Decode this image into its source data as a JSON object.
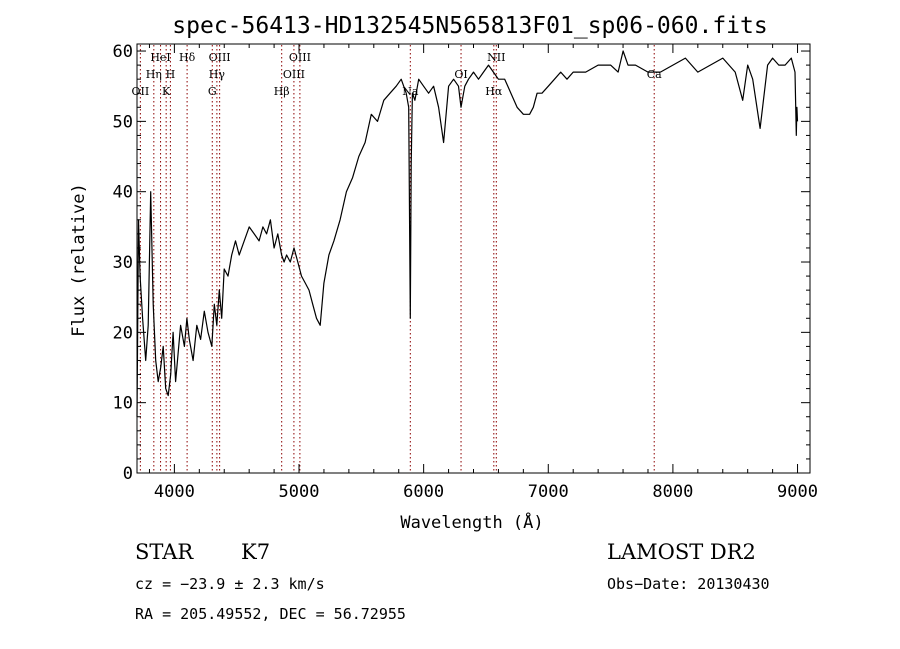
{
  "chart_data": {
    "type": "line",
    "title": "spec-56413-HD132545N565813F01_sp06-060.fits",
    "xlabel": "Wavelength (Å)",
    "ylabel": "Flux (relative)",
    "xlim": [
      3700,
      9100
    ],
    "ylim": [
      0,
      61
    ],
    "grid": false,
    "x_ticks": [
      4000,
      5000,
      6000,
      7000,
      8000,
      9000
    ],
    "x_tick_labels": [
      "4000",
      "5000",
      "6000",
      "7000",
      "8000",
      "9000"
    ],
    "y_ticks": [
      0,
      10,
      20,
      30,
      40,
      50,
      60
    ],
    "y_tick_labels": [
      "0",
      "10",
      "20",
      "30",
      "40",
      "50",
      "60"
    ],
    "series": [
      {
        "color": "#000000",
        "x": [
          3700,
          3712,
          3725,
          3745,
          3770,
          3790,
          3810,
          3830,
          3850,
          3870,
          3890,
          3910,
          3930,
          3950,
          3970,
          3990,
          4010,
          4030,
          4050,
          4080,
          4100,
          4120,
          4150,
          4180,
          4210,
          4240,
          4270,
          4300,
          4320,
          4340,
          4360,
          4380,
          4400,
          4430,
          4460,
          4490,
          4520,
          4560,
          4600,
          4640,
          4680,
          4710,
          4740,
          4770,
          4800,
          4830,
          4860,
          4880,
          4900,
          4930,
          4960,
          4990,
          5020,
          5050,
          5080,
          5110,
          5140,
          5170,
          5200,
          5240,
          5280,
          5330,
          5380,
          5430,
          5480,
          5530,
          5580,
          5630,
          5680,
          5730,
          5780,
          5820,
          5860,
          5880,
          5893,
          5900,
          5910,
          5930,
          5960,
          6000,
          6040,
          6080,
          6120,
          6160,
          6200,
          6240,
          6280,
          6300,
          6330,
          6360,
          6400,
          6440,
          6480,
          6520,
          6560,
          6600,
          6650,
          6700,
          6750,
          6800,
          6850,
          6880,
          6910,
          6950,
          7000,
          7050,
          7100,
          7150,
          7200,
          7300,
          7400,
          7500,
          7560,
          7600,
          7640,
          7700,
          7800,
          7900,
          8000,
          8100,
          8200,
          8300,
          8400,
          8500,
          8560,
          8600,
          8640,
          8700,
          8760,
          8800,
          8850,
          8900,
          8950,
          8980,
          8990,
          8995,
          9000
        ],
        "y": [
          8,
          36,
          28,
          22,
          16,
          21,
          40,
          24,
          16,
          13,
          15,
          18,
          12,
          11,
          14,
          20,
          13,
          17,
          21,
          18,
          22,
          19,
          16,
          21,
          19,
          23,
          20,
          18,
          24,
          21,
          26,
          22,
          29,
          28,
          31,
          33,
          31,
          33,
          35,
          34,
          33,
          35,
          34,
          36,
          32,
          34,
          31,
          30,
          31,
          30,
          32,
          30,
          28,
          27,
          26,
          24,
          22,
          21,
          27,
          31,
          33,
          36,
          40,
          42,
          45,
          47,
          51,
          50,
          53,
          54,
          55,
          56,
          54,
          52,
          22,
          44,
          54,
          53,
          56,
          55,
          54,
          55,
          52,
          47,
          55,
          56,
          55,
          52,
          55,
          56,
          57,
          56,
          57,
          58,
          57,
          56,
          56,
          54,
          52,
          51,
          51,
          52,
          54,
          54,
          55,
          56,
          57,
          56,
          57,
          57,
          58,
          58,
          57,
          60,
          58,
          58,
          57,
          57,
          58,
          59,
          57,
          58,
          59,
          57,
          53,
          58,
          56,
          49,
          58,
          59,
          58,
          58,
          59,
          57,
          48,
          52,
          50
        ]
      }
    ],
    "line_markers": [
      {
        "label": "OII",
        "x": 3727,
        "row": 3
      },
      {
        "label": "HeI",
        "x": 3889,
        "row": 1
      },
      {
        "label": "Hη",
        "x": 3835,
        "row": 2
      },
      {
        "label": "H",
        "x": 3968,
        "row": 2
      },
      {
        "label": "K",
        "x": 3934,
        "row": 3
      },
      {
        "label": "Hδ",
        "x": 4102,
        "row": 1
      },
      {
        "label": "OIII",
        "x": 4363,
        "row": 1
      },
      {
        "label": "Hγ",
        "x": 4341,
        "row": 2
      },
      {
        "label": "G",
        "x": 4304,
        "row": 3
      },
      {
        "label": "Hβ",
        "x": 4861,
        "row": 3
      },
      {
        "label": "OIII",
        "x": 5007,
        "row": 1
      },
      {
        "label": "OIII",
        "x": 4959,
        "row": 2
      },
      {
        "label": "Na",
        "x": 5893,
        "row": 3
      },
      {
        "label": "OI",
        "x": 6300,
        "row": 2
      },
      {
        "label": "NII",
        "x": 6583,
        "row": 1
      },
      {
        "label": "Hα",
        "x": 6563,
        "row": 3
      },
      {
        "label": "Ca",
        "x": 7850,
        "row": 2
      }
    ],
    "marker_color": "#8b0000"
  },
  "info": {
    "class_label": "STAR",
    "subclass": "K7",
    "survey": "LAMOST DR2",
    "cz": "cz = −23.9 ± 2.3 km/s",
    "obs_date": "Obs−Date: 20130430",
    "radec": "RA = 205.49552, DEC =  56.72955"
  }
}
